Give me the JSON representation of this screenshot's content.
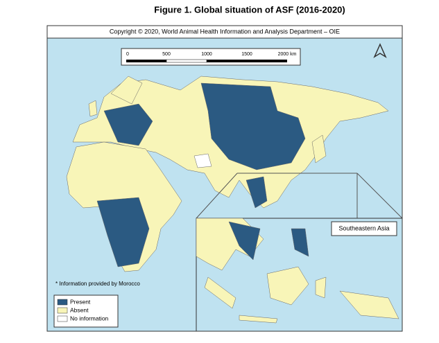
{
  "title": "Figure 1. Global situation of ASF (2016-2020)",
  "copyright": "Copyright © 2020, World Animal Health Information and Analysis Department – OIE",
  "scale_bar": {
    "labels": [
      "0",
      "500",
      "1000",
      "1500",
      "2000 km"
    ]
  },
  "inset_label": "Southeastern Asia",
  "footnote": "* Information provided by Morocco",
  "legend": [
    {
      "label": "Present",
      "color": "#2b5a82"
    },
    {
      "label": "Absent",
      "color": "#f8f5b8"
    },
    {
      "label": "No information",
      "color": "#ffffff"
    }
  ]
}
